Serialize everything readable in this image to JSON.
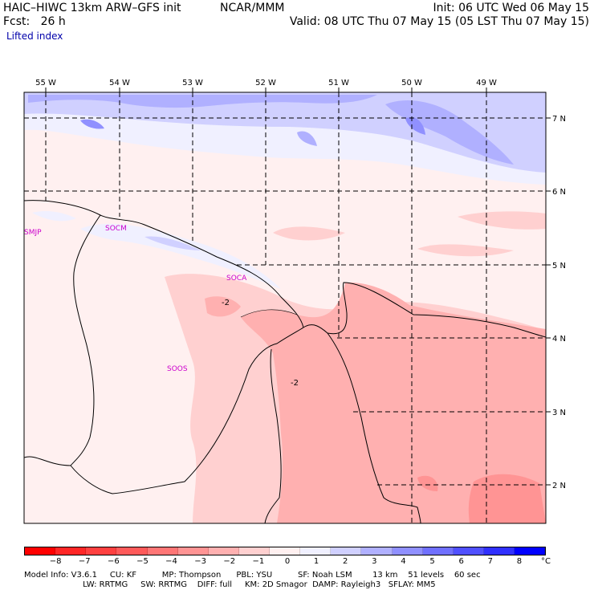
{
  "header": {
    "model": "HAIC–HIWC 13km ARW–GFS init",
    "org": "NCAR/MMM",
    "init": "Init: 06 UTC Wed 06 May 15",
    "fcst": "Fcst:   26 h",
    "valid": "Valid: 08 UTC Thu 07 May 15 (05 LST Thu 07 May 15)",
    "field": "Lifted index"
  },
  "map": {
    "lon_labels": [
      "55 W",
      "54 W",
      "53 W",
      "52 W",
      "51 W",
      "50 W",
      "49 W"
    ],
    "lat_labels": [
      "7 N",
      "6 N",
      "5 N",
      "4 N",
      "3 N",
      "2 N"
    ],
    "stations": [
      "SMJP",
      "SOCM",
      "SOCA",
      "SOOS"
    ],
    "contour_labels": [
      "-2",
      "-2"
    ]
  },
  "colorbar": {
    "labels": [
      "−8",
      "−7",
      "−6",
      "−5",
      "−4",
      "−3",
      "−2",
      "−1",
      "0",
      "1",
      "2",
      "3",
      "4",
      "5",
      "6",
      "7",
      "8"
    ],
    "unit": "°C",
    "colors": [
      "#ff0000",
      "#ff2626",
      "#ff4040",
      "#ff5a5a",
      "#ff7676",
      "#ff9494",
      "#ffb0b0",
      "#ffd0d0",
      "#fff0f0",
      "#f0f0ff",
      "#d0d0ff",
      "#b0b0ff",
      "#9090ff",
      "#7070ff",
      "#5050ff",
      "#3030ff",
      "#0000ff"
    ]
  },
  "footer": {
    "line1": "Model Info: V3.6.1     CU: KF          MP: Thompson      PBL: YSU          SF: Noah LSM        13 km    51 levels    60 sec",
    "line2": "                       LW: RRTMG     SW: RRTMG    DIFF: full     KM: 2D Smagor  DAMP: Rayleigh3   SFLAY: MM5"
  }
}
